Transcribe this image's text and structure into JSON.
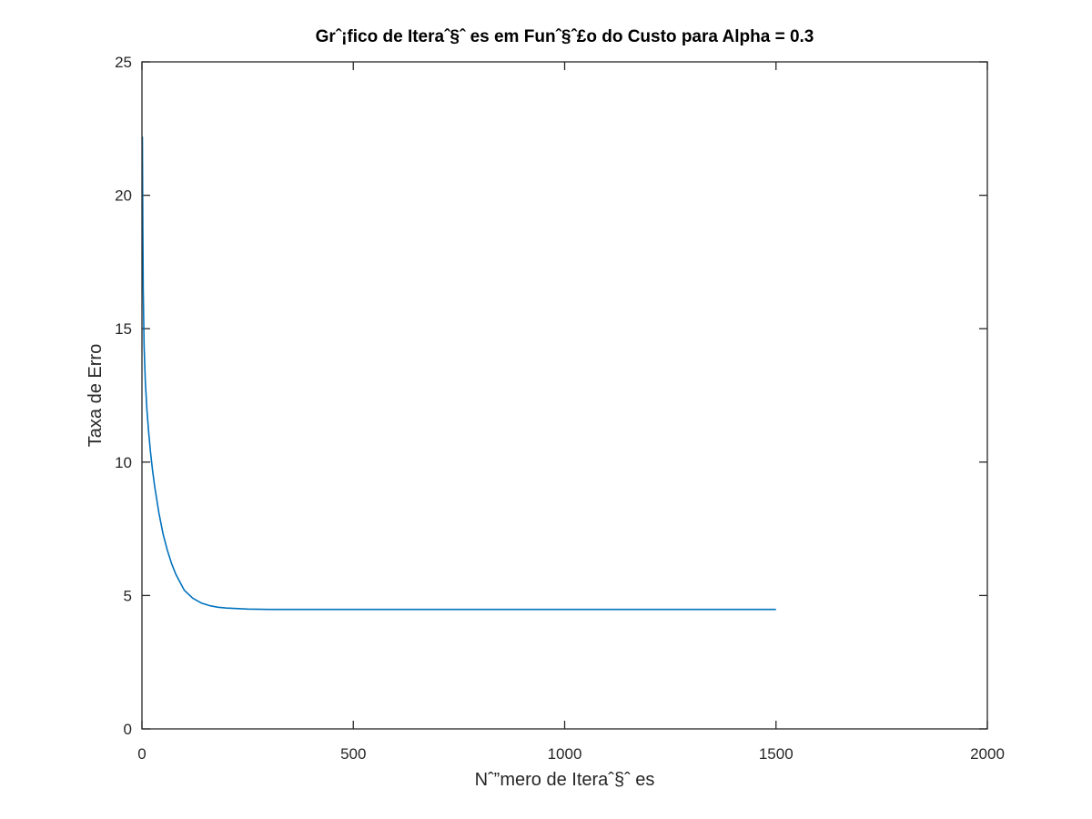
{
  "chart_data": {
    "type": "line",
    "title": "Grˆ¡fico de Iteraˆ§ˆ es em Funˆ§ˆ£o do Custo para Alpha = 0.3",
    "xlabel": "Nˆ”mero de Iteraˆ§ˆ es",
    "ylabel": "Taxa de Erro",
    "xlim": [
      0,
      2000
    ],
    "ylim": [
      0,
      25
    ],
    "xticks": [
      0,
      500,
      1000,
      1500,
      2000
    ],
    "yticks": [
      0,
      5,
      10,
      15,
      20,
      25
    ],
    "grid": false,
    "series": [
      {
        "color": "#0072bd",
        "x": [
          1,
          2,
          3,
          5,
          8,
          12,
          16,
          20,
          25,
          30,
          40,
          50,
          60,
          70,
          80,
          90,
          100,
          120,
          140,
          160,
          180,
          200,
          250,
          300,
          400,
          600,
          800,
          1000,
          1200,
          1500
        ],
        "y": [
          22.2,
          19.0,
          16.5,
          14.4,
          13.0,
          11.9,
          11.1,
          10.4,
          9.7,
          9.1,
          8.1,
          7.3,
          6.7,
          6.2,
          5.8,
          5.5,
          5.2,
          4.9,
          4.72,
          4.62,
          4.56,
          4.53,
          4.49,
          4.48,
          4.48,
          4.48,
          4.48,
          4.48,
          4.48,
          4.48
        ]
      }
    ]
  }
}
